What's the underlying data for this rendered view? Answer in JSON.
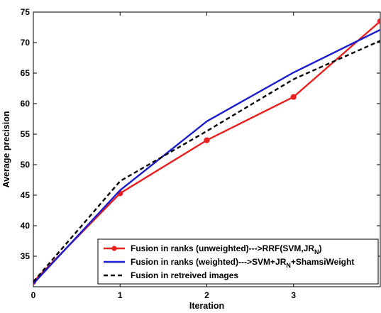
{
  "chart_data": {
    "type": "line",
    "title": "",
    "xlabel": "Iteration",
    "ylabel": "Average precision",
    "xlim": [
      0,
      4
    ],
    "ylim": [
      30,
      75
    ],
    "xticks": [
      "0",
      "1",
      "2",
      "3"
    ],
    "yticks": [
      "35",
      "40",
      "45",
      "50",
      "55",
      "60",
      "65",
      "70",
      "75"
    ],
    "grid": false,
    "legend_position": "bottom-right",
    "x": [
      0,
      1,
      2,
      3,
      4
    ],
    "series": [
      {
        "name": "Fusion in ranks (unweighted)--->RRF(SVM,JR_N)",
        "legend_text": "Fusion in ranks (unweighted)--->RRF(SVM,JR",
        "legend_sub": "N",
        "legend_tail": ")",
        "values": [
          30.8,
          45.3,
          54.0,
          61.1,
          73.5
        ],
        "color": "#e8201f",
        "style": "solid",
        "marker": "circle"
      },
      {
        "name": "Fusion in ranks (weighted)--->SVM+JR_N+ShamsiWeight",
        "legend_text": "Fusion in ranks (weighted)--->SVM+JR",
        "legend_sub": "N",
        "legend_tail": "+ShamsiWeight",
        "values": [
          30.5,
          45.8,
          57.1,
          65.1,
          72.1
        ],
        "color": "#1c1ccf",
        "style": "solid",
        "marker": "none"
      },
      {
        "name": "Fusion in retreived images",
        "legend_text": "Fusion in retreived images",
        "legend_sub": "",
        "legend_tail": "",
        "values": [
          30.8,
          47.3,
          55.5,
          64.0,
          70.3
        ],
        "color": "#000000",
        "style": "dashed",
        "marker": "none"
      }
    ]
  }
}
